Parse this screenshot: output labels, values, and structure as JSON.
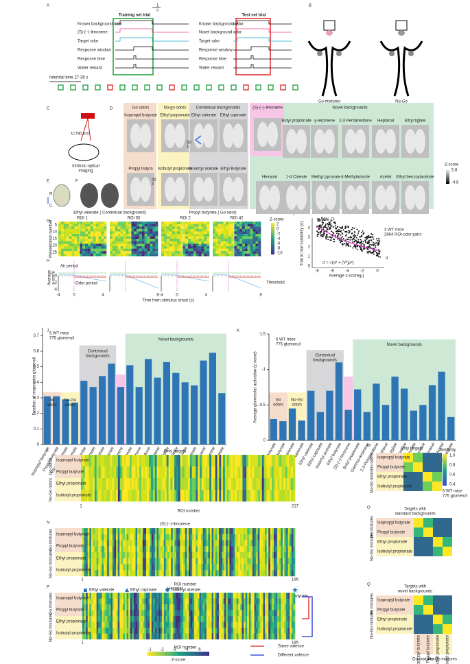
{
  "letters": [
    "A",
    "B",
    "C",
    "D",
    "E",
    "F",
    "G",
    "H",
    "I",
    "J",
    "K",
    "L",
    "M",
    "N",
    "O",
    "P",
    "Q"
  ],
  "a": {
    "scale_n": "1",
    "scale_unit": "s",
    "training": "Training set trial",
    "test": "Test set trial",
    "train_rows": [
      "Known background odor",
      "(S)-(−)-limonene",
      "Target odor",
      "Response window",
      "Response time",
      "Water reward"
    ],
    "test_rows": [
      "Known background odor",
      "Novel background odor",
      "Target odor",
      "Response window",
      "Response time",
      "Water reward"
    ],
    "intertrial": "Intertrial time 27-36 s"
  },
  "b": {
    "go": "Go mixtures",
    "nogo": [
      "No-Go",
      "mixtures"
    ]
  },
  "c": {
    "wavelength": "λ=780 nm",
    "caption": [
      "Intrinsic optical",
      "imaging"
    ]
  },
  "d": {
    "groups": [
      "Go odors",
      "No-go odors",
      "Contextual backgrounds",
      "(S)-(−)-limonene",
      "Novel backgrounds"
    ],
    "odors_top": [
      "Isopropyl butyrate",
      "Ethyl propionate",
      "Ethyl valerate",
      "Ethyl caproate",
      "Butyl propionate",
      "γ-terpinene",
      "2-3 Pentanedione",
      "Heptanal",
      "Ethyl tiglate"
    ],
    "odors_bottom": [
      "Propyl butyra",
      "Isobutyl propionate",
      "Isoamyl acetate",
      "Ethyl Butyrate",
      "Hexanal",
      "1-4 Cineole",
      "Methyl pyruvate",
      "4-Methylanisole",
      "Acetal",
      "Ethyl benzoylacetate"
    ],
    "rois": [
      "50",
      "1",
      "42",
      "2"
    ],
    "zscore": "Z-score",
    "zmax": "5.8",
    "zmin": "-4.8"
  },
  "e": {
    "r": "R",
    "c": "C"
  },
  "g": {
    "title1": "Ethyl valerate ( Contextual background)",
    "title2": "Propyl butyrate ( Go odor)",
    "rois": [
      "ROI 1",
      "ROI 50",
      "ROI 2",
      "ROI 42"
    ],
    "ylabel": "Presentation number",
    "yticks": [
      "5",
      "10",
      "15",
      "20",
      "25"
    ],
    "zscore": "Z-score",
    "cticks": [
      "2",
      "0",
      "-2",
      "-4",
      "-6",
      "-8",
      "-10"
    ]
  },
  "h": {
    "air": "Air period",
    "odor": "Odor period",
    "threshold": "Threshold",
    "ylabel": [
      "Average",
      "z-score"
    ],
    "yticks": [
      "0",
      "-2",
      "-4"
    ],
    "xticks": [
      [
        "-4",
        "0",
        "4",
        "8"
      ],
      [
        "-4",
        "0",
        "4",
        "8"
      ]
    ],
    "xlabel": "Time from stimulus onset (s)"
  },
  "i": {
    "ci": "99% CI",
    "mice": "3 WT mice",
    "pairs": "2684 ROI-odor pairs",
    "ylabel": "Trial to trial variability (σ)",
    "xlabel": "Average z-score(μ)",
    "yticks": [
      "0",
      "1",
      "2",
      "3",
      "4"
    ],
    "xticks": [
      "-8",
      "-6",
      "-4",
      "-2",
      "0"
    ],
    "formula": "σ = √(α² + (V²)μ²)",
    "alpha": "α"
  },
  "l": {
    "title": "Only targets",
    "groups": [
      "Go odors",
      "No-Go odors"
    ],
    "rows": [
      "Isopropyl butyrate",
      "Propyl butyrate",
      "Ethyl propionate",
      "Isobutyl propionate"
    ],
    "first": "1",
    "last": "217",
    "xlabel": "ROI number"
  },
  "m": {
    "title": "Only targets",
    "rows": [
      "Isopropyl butyrate",
      "Propyl butyrate",
      "Ethyl propionate",
      "Isobutyl propionate"
    ],
    "groups": [
      "Go odors",
      "No-Go odors"
    ],
    "legend": "Similarity",
    "cticks": [
      "1.0",
      "0.8",
      "0.6",
      "0.4"
    ],
    "mice": "5 WT mice",
    "glomeruli": "775 glomeruli"
  },
  "n": {
    "title": "(S)-(−)-limonene",
    "rows": [
      "Isopropyl butyrate",
      "Propyl butyrate",
      "Ethyl propionate",
      "Isobutyl propionate"
    ],
    "groups": [
      "Go mixtures",
      "No-Go mixtures"
    ],
    "first": "1",
    "last": "195",
    "xlabel": "ROI number",
    "legend": [
      "Ethyl valerate",
      "Ethyl caproate",
      "Isoamyl acetate",
      "Ethyl butyrate"
    ]
  },
  "o": {
    "title": [
      "Targets with",
      "standard backgrounds"
    ],
    "rows": [
      "Isopropyl butyrate",
      "Propyl butyrate",
      "Ethyl propionate",
      "Isobutyl propionate"
    ],
    "groups": [
      "Go mixtures",
      "No-Go mixtures"
    ]
  },
  "p": {
    "title": "Hexanal",
    "rows": [
      "Isopropyl butyrate",
      "Propyl butyrate",
      "Ethyl propionate",
      "Isobutyl propionate"
    ],
    "groups": [
      "Go mixtures",
      "No-Go mixtures"
    ],
    "first": "1",
    "last": "195",
    "xlabel": "ROI number",
    "cticks": [
      "-1",
      "-2",
      "-3",
      "-4",
      "-5"
    ],
    "zscore": "Z-score",
    "same": "Same valence",
    "different": "Different valence"
  },
  "q": {
    "title": [
      "Targets with",
      "novel backgrounds"
    ],
    "rows": [
      "Isopropyl butyrate",
      "Propyl butyrate",
      "Ethyl propionate",
      "Isobutyl propionate"
    ],
    "cols": [
      "Isopropyl butyrate",
      "Propyl butyrate",
      "Ethyl propionate",
      "Isobutyl propionate"
    ],
    "groups": [
      "Go mixtures",
      "No-Go mixtures"
    ],
    "col_groups": [
      "Go mixtures",
      "No-Go mixtures"
    ]
  },
  "chart_data": [
    {
      "type": "bar",
      "ylabel": "Fraction of responsive glomeruli",
      "color": "#2e75b6",
      "categories": [
        "Isopropyl butyrate",
        "Propyl butyrate",
        "Ethyl propionate",
        "Isobutyl propionate",
        "Ethyl valerate",
        "Ethyl caproate",
        "Isoamyl acetate",
        "Ethyl butyrate",
        "(S)-(−)-limonene",
        "Butyl propionate",
        "Gamma-terpinene",
        "2,3-Pentanedione",
        "Heptanal",
        "Ethyl tiglate",
        "1,4-Cineole",
        "Methyl pyruvate",
        "4-Methylanisole",
        "Hexanal",
        "Acetal",
        "Ethyl benzoylacetate"
      ],
      "values": [
        0.31,
        0.31,
        0.29,
        0.27,
        0.41,
        0.37,
        0.44,
        0.52,
        0.37,
        0.51,
        0.37,
        0.55,
        0.43,
        0.53,
        0.46,
        0.4,
        0.38,
        0.54,
        0.59,
        0.33
      ],
      "ylim": [
        0,
        0.75
      ],
      "yticks": [
        0,
        0.1,
        0.2,
        0.3,
        0.4,
        0.5,
        0.6,
        0.7
      ],
      "annotations": {
        "mice": "5 WT mice",
        "glomeruli": "775 glomeruli",
        "go": [
          "Go",
          "odors"
        ],
        "nogo": [
          "No-Go",
          "odors"
        ],
        "context": [
          "Contextual",
          "backgrounds"
        ],
        "novel": "Novel backgrounds"
      }
    },
    {
      "type": "bar",
      "ylabel": "Average glomerular activation (z-score)",
      "color": "#2e75b6",
      "categories": [
        "Isopropyl butyrate",
        "Propyl butyrate",
        "Ethyl propionate",
        "Isobutyl propionate",
        "Ethyl valerate",
        "Ethyl caproate",
        "Isoamyl acetate",
        "Ethyl butyrate",
        "(S)-(−)-limonene",
        "Butyl propionate",
        "Gamma-terpinene",
        "2,3-Pentanedione",
        "Heptanal",
        "Ethyl tiglate",
        "1,4-Cineole",
        "Methyl pyruvate",
        "4-Methylanisole",
        "Hexanal",
        "Acetal",
        "Ethyl benzoylacetate"
      ],
      "values": [
        -0.3,
        -0.27,
        -0.45,
        -0.28,
        -0.7,
        -0.4,
        -0.7,
        -1.1,
        -0.43,
        -0.72,
        -0.4,
        -0.8,
        -0.5,
        -0.9,
        -0.73,
        -0.42,
        -0.5,
        -0.78,
        -0.97,
        -0.33
      ],
      "ylim": [
        0,
        -1.5
      ],
      "yticks": [
        0,
        -0.5,
        -1,
        -1.5
      ],
      "annotations": {
        "mice": "5 WT mice",
        "glomeruli": "775 glomeruli",
        "go": [
          "Go",
          "odors"
        ],
        "nogo": [
          "No-Go",
          "odors"
        ],
        "context": [
          "Contextual",
          "backgrounds"
        ],
        "novel": "Novel backgrounds"
      }
    }
  ]
}
